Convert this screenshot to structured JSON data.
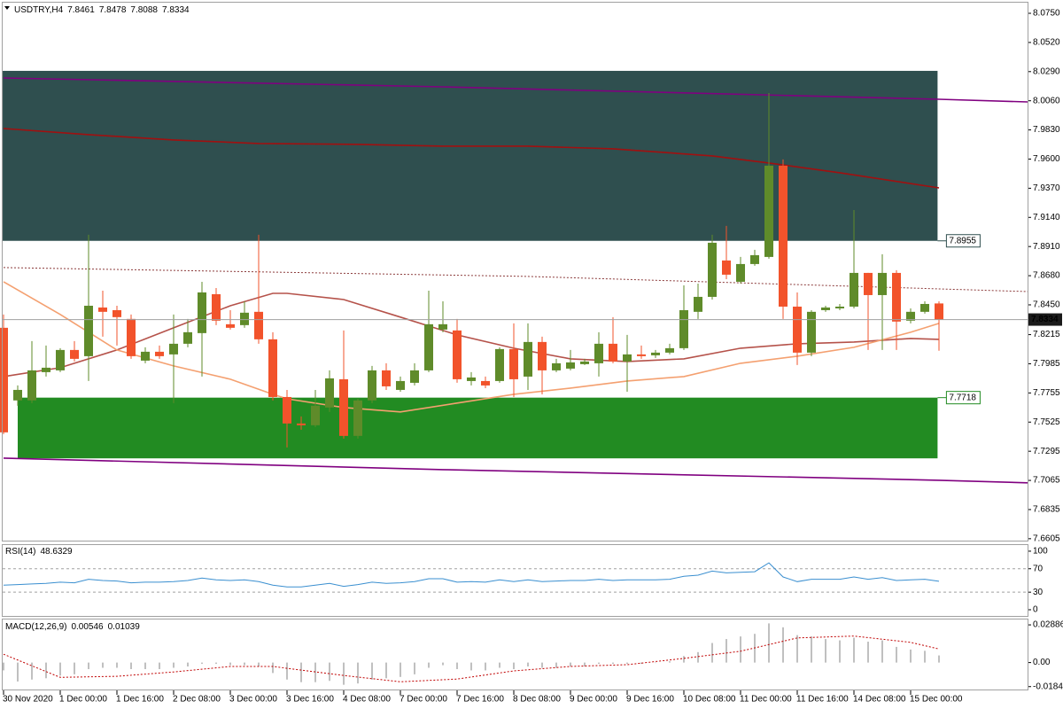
{
  "chart_data": [
    {
      "type": "candlestick",
      "title": "USDTRY,H4",
      "categories": [
        "30 Nov 2020",
        null,
        null,
        null,
        "1 Dec 00:00",
        null,
        null,
        null,
        "1 Dec 16:00",
        null,
        null,
        null,
        "2 Dec 08:00",
        null,
        null,
        null,
        "3 Dec 00:00",
        null,
        null,
        null,
        "3 Dec 16:00",
        null,
        null,
        null,
        "4 Dec 08:00",
        null,
        null,
        null,
        "7 Dec 00:00",
        null,
        null,
        null,
        "7 Dec 16:00",
        null,
        null,
        null,
        "8 Dec 08:00",
        null,
        null,
        null,
        "9 Dec 00:00",
        null,
        null,
        null,
        "9 Dec 16:00",
        null,
        null,
        null,
        "10 Dec 08:00",
        null,
        null,
        null,
        "11 Dec 00:00",
        null,
        null,
        null,
        "11 Dec 16:00",
        null,
        null,
        null,
        "14 Dec 08:00",
        null,
        null,
        null,
        "15 Dec 00:00",
        null,
        null
      ],
      "open": [
        7.8269,
        7.7696,
        7.7696,
        7.7919,
        7.7933,
        7.8094,
        7.8045,
        7.8429,
        7.8408,
        7.8339,
        7.801,
        7.808,
        7.8059,
        7.8143,
        7.8227,
        7.8534,
        7.8297,
        7.829,
        7.8395,
        7.8178,
        7.7723,
        7.7514,
        7.75,
        7.764,
        7.7863,
        7.7416,
        7.7696,
        7.7933,
        7.7779,
        7.7835,
        7.7933,
        7.8255,
        7.8248,
        7.7849,
        7.7849,
        7.7849,
        7.8101,
        7.7884,
        7.8157,
        7.7933,
        7.7947,
        7.7982,
        7.7989,
        7.8143,
        7.8003,
        7.8059,
        7.8052,
        7.8073,
        7.8108,
        7.8395,
        7.8513,
        7.88,
        7.8632,
        7.8772,
        7.8828,
        7.9548,
        7.8436,
        7.8073,
        7.8408,
        7.8422,
        7.8436,
        7.8702,
        7.8527,
        7.8702,
        7.8325,
        7.8395,
        7.8461
      ],
      "high": [
        7.8374,
        7.7814,
        7.8164,
        7.8129,
        7.8108,
        7.8164,
        7.9003,
        7.8562,
        7.8443,
        7.8374,
        7.8115,
        7.8129,
        7.8374,
        7.8339,
        7.8632,
        7.8583,
        7.8408,
        7.8478,
        7.9003,
        7.8234,
        7.7779,
        7.757,
        7.7779,
        7.7933,
        7.8248,
        7.7709,
        7.7968,
        7.7989,
        7.7884,
        7.7989,
        7.8562,
        7.8478,
        7.8339,
        7.7919,
        7.7884,
        7.8115,
        7.8304,
        7.8304,
        7.8199,
        7.8024,
        7.8094,
        7.8024,
        7.8234,
        7.8353,
        7.8213,
        7.8129,
        7.8094,
        7.8143,
        7.8604,
        7.8618,
        7.9003,
        7.9073,
        7.8828,
        7.8884,
        8.0121,
        7.9597,
        7.8548,
        7.8408,
        7.8443,
        7.8457,
        7.9198,
        7.8702,
        7.8849,
        7.8723,
        7.8422,
        7.8478,
        7.8478
      ],
      "low": [
        7.743,
        7.7654,
        7.7675,
        7.7884,
        7.7919,
        7.8003,
        7.7849,
        7.8199,
        7.8129,
        7.8024,
        7.7989,
        7.8024,
        7.7675,
        7.8115,
        7.7884,
        7.829,
        7.8255,
        7.8269,
        7.8143,
        7.7696,
        7.7325,
        7.7465,
        7.7486,
        7.7605,
        7.7395,
        7.7395,
        7.7675,
        7.7779,
        7.7765,
        7.7814,
        7.7919,
        7.8234,
        7.7835,
        7.7814,
        7.7793,
        7.7835,
        7.7723,
        7.7779,
        7.7744,
        7.7919,
        7.7933,
        7.7975,
        7.7884,
        7.7989,
        7.7765,
        7.8024,
        7.8031,
        7.8059,
        7.8094,
        7.8339,
        7.8492,
        7.8653,
        7.8618,
        7.8758,
        7.8814,
        7.8339,
        7.7975,
        7.8045,
        7.8395,
        7.8408,
        7.8422,
        7.8094,
        7.8094,
        7.8094,
        7.8304,
        7.8381,
        7.8088
      ],
      "close": [
        7.7444,
        7.7779,
        7.7933,
        7.7954,
        7.8094,
        7.8024,
        7.8443,
        7.8395,
        7.8353,
        7.8045,
        7.808,
        7.8045,
        7.8143,
        7.8234,
        7.8548,
        7.8325,
        7.8269,
        7.8388,
        7.8178,
        7.7723,
        7.7514,
        7.75,
        7.7654,
        7.787,
        7.7416,
        7.7696,
        7.7933,
        7.7807,
        7.7849,
        7.7933,
        7.8297,
        7.8297,
        7.7863,
        7.7877,
        7.7814,
        7.8101,
        7.7863,
        7.8157,
        7.7933,
        7.7989,
        7.7996,
        7.8003,
        7.8143,
        7.8003,
        7.8059,
        7.8045,
        7.8073,
        7.8108,
        7.8408,
        7.8513,
        7.894,
        7.8688,
        7.8772,
        7.8842,
        7.9548,
        7.8436,
        7.8073,
        7.8395,
        7.8429,
        7.8436,
        7.8702,
        7.8527,
        7.8702,
        7.8318,
        7.8395,
        7.8457,
        7.8334
      ],
      "up_color": "#5f8b2a",
      "down_color": "#f2532b",
      "ylim": [
        7.659,
        8.0834
      ],
      "yticks": [
        {
          "value": 8.075,
          "label": "8.0750"
        },
        {
          "value": 8.052,
          "label": "8.0520"
        },
        {
          "value": 8.029,
          "label": "8.0290"
        },
        {
          "value": 8.006,
          "label": "8.0060"
        },
        {
          "value": 7.983,
          "label": "7.9830"
        },
        {
          "value": 7.96,
          "label": "7.9600"
        },
        {
          "value": 7.937,
          "label": "7.9370"
        },
        {
          "value": 7.914,
          "label": "7.9140"
        },
        {
          "value": 7.891,
          "label": "7.8910"
        },
        {
          "value": 7.868,
          "label": "7.8680"
        },
        {
          "value": 7.845,
          "label": "7.8450"
        },
        7.8215,
        7.7985,
        7.7755,
        7.7525,
        7.7295,
        7.7065,
        7.6835,
        7.6605
      ],
      "zones": [
        {
          "x": [
            -0.06,
            65.9
          ],
          "top": 8.0296,
          "bottom": 7.8955,
          "label_edge": "bottom",
          "color": "#2f4f4f",
          "label_color": "#2f4f4f"
        },
        {
          "x": [
            1,
            65.9
          ],
          "top": 7.7718,
          "bottom": 7.7239,
          "label_edge": "top",
          "color": "#228b22",
          "label_color": "#228b22"
        }
      ],
      "lines": [
        {
          "color": "#800080",
          "width": 1.6,
          "dash": "none",
          "x": [
            0,
            31,
            66,
            72.25
          ],
          "values": [
            8.024,
            8.017,
            8.0072,
            8.0051
          ]
        },
        {
          "color": "#800080",
          "width": 1.6,
          "dash": "none",
          "x": [
            0,
            31,
            66,
            72.25
          ],
          "values": [
            7.7241,
            7.715,
            7.7066,
            7.7046
          ]
        },
        {
          "color": "#8b3a3a",
          "width": 1,
          "dash": "2,2",
          "x": [
            0,
            37,
            72.25
          ],
          "values": [
            7.8744,
            7.8674,
            7.8555
          ]
        },
        {
          "color": "#a01010",
          "width": 1.6,
          "dash": "none",
          "x": [
            0,
            6,
            12,
            18,
            25,
            31,
            37,
            43,
            50,
            54,
            59,
            66
          ],
          "values": [
            7.9841,
            7.9793,
            7.9751,
            7.9723,
            7.9716,
            7.9702,
            7.9702,
            7.9681,
            7.9625,
            7.9569,
            7.9492,
            7.9373
          ]
        },
        {
          "color": "#b5524a",
          "width": 1.6,
          "dash": "none",
          "x": [
            0,
            4,
            8,
            12,
            16,
            19,
            20,
            24,
            28,
            32,
            36,
            40,
            44,
            48,
            52,
            56,
            60,
            64,
            66
          ],
          "values": [
            7.7884,
            7.7954,
            7.8094,
            7.8269,
            7.8443,
            7.8541,
            7.8541,
            7.8492,
            7.8353,
            7.8213,
            7.8108,
            7.8024,
            7.8003,
            7.8024,
            7.8108,
            7.8143,
            7.8157,
            7.8185,
            7.8178
          ]
        },
        {
          "color": "#f4a070",
          "width": 1.6,
          "dash": "none",
          "x": [
            0,
            4,
            8,
            12,
            16,
            19,
            20,
            24,
            28,
            32,
            36,
            40,
            44,
            48,
            52,
            56,
            60,
            64,
            66
          ],
          "values": [
            7.8632,
            7.8374,
            7.8094,
            7.7968,
            7.7863,
            7.7744,
            7.7709,
            7.764,
            7.7605,
            7.7675,
            7.7744,
            7.7793,
            7.7849,
            7.7884,
            7.7989,
            7.8045,
            7.8115,
            7.8234,
            7.8304
          ]
        }
      ]
    },
    {
      "type": "line",
      "title": "RSI(14)",
      "color": "#3a8fd0",
      "values": [
        42,
        43,
        44,
        45,
        47,
        46,
        52,
        50,
        49,
        46,
        47,
        47,
        48,
        50,
        54,
        51,
        50,
        51,
        48,
        42,
        39,
        39,
        42,
        45,
        40,
        43,
        47,
        45,
        46,
        48,
        53,
        53,
        47,
        48,
        47,
        51,
        48,
        51,
        48,
        49,
        50,
        50,
        52,
        50,
        51,
        51,
        51,
        52,
        57,
        59,
        66,
        63,
        64,
        65,
        80,
        56,
        48,
        52,
        52,
        52,
        56,
        52,
        55,
        50,
        51,
        52,
        48.6329
      ],
      "ylim": [
        -10.6,
        112
      ],
      "yticks": [
        100,
        70,
        30,
        0
      ],
      "levels": [
        70,
        30
      ]
    },
    {
      "type": "bar",
      "title": "MACD(12,26,9)",
      "color": "#c0c0c0",
      "values": [
        -0.006,
        -0.0145,
        -0.013,
        -0.012,
        -0.01,
        -0.009,
        -0.005,
        -0.004,
        -0.004,
        -0.005,
        -0.005,
        -0.005,
        -0.004,
        -0.003,
        -0.001,
        -0.001,
        -0.002,
        -0.002,
        -0.003,
        -0.008,
        -0.013,
        -0.015,
        -0.015,
        -0.014,
        -0.017,
        -0.016,
        -0.013,
        -0.012,
        -0.011,
        -0.009,
        -0.004,
        -0.002,
        -0.005,
        -0.006,
        -0.006,
        -0.004,
        -0.005,
        -0.003,
        -0.004,
        -0.004,
        -0.003,
        -0.003,
        -0.001,
        -0.001,
        -0.001,
        -0.001,
        0.0,
        0.001,
        0.005,
        0.008,
        0.015,
        0.018,
        0.02,
        0.022,
        0.03,
        0.027,
        0.021,
        0.02,
        0.018,
        0.017,
        0.019,
        0.016,
        0.017,
        0.012,
        0.01,
        0.009,
        0.00546
      ],
      "signal": {
        "color": "#c00000",
        "x": [
          0,
          4,
          8,
          12,
          16,
          19,
          24,
          28,
          32,
          36,
          40,
          44,
          48,
          52,
          56,
          60,
          64,
          66
        ],
        "values": [
          0.0064,
          -0.0113,
          -0.0105,
          -0.0072,
          -0.003,
          -0.003,
          -0.0099,
          -0.0147,
          -0.0126,
          -0.0064,
          -0.003,
          -0.0016,
          0.0032,
          0.0087,
          0.0189,
          0.0203,
          0.0155,
          0.01039
        ]
      },
      "ylim": [
        -0.02062,
        0.03298
      ],
      "yticks": [
        0.02886,
        {
          "value": 0,
          "label": "0.00"
        },
        -0.01841
      ]
    }
  ]
}
